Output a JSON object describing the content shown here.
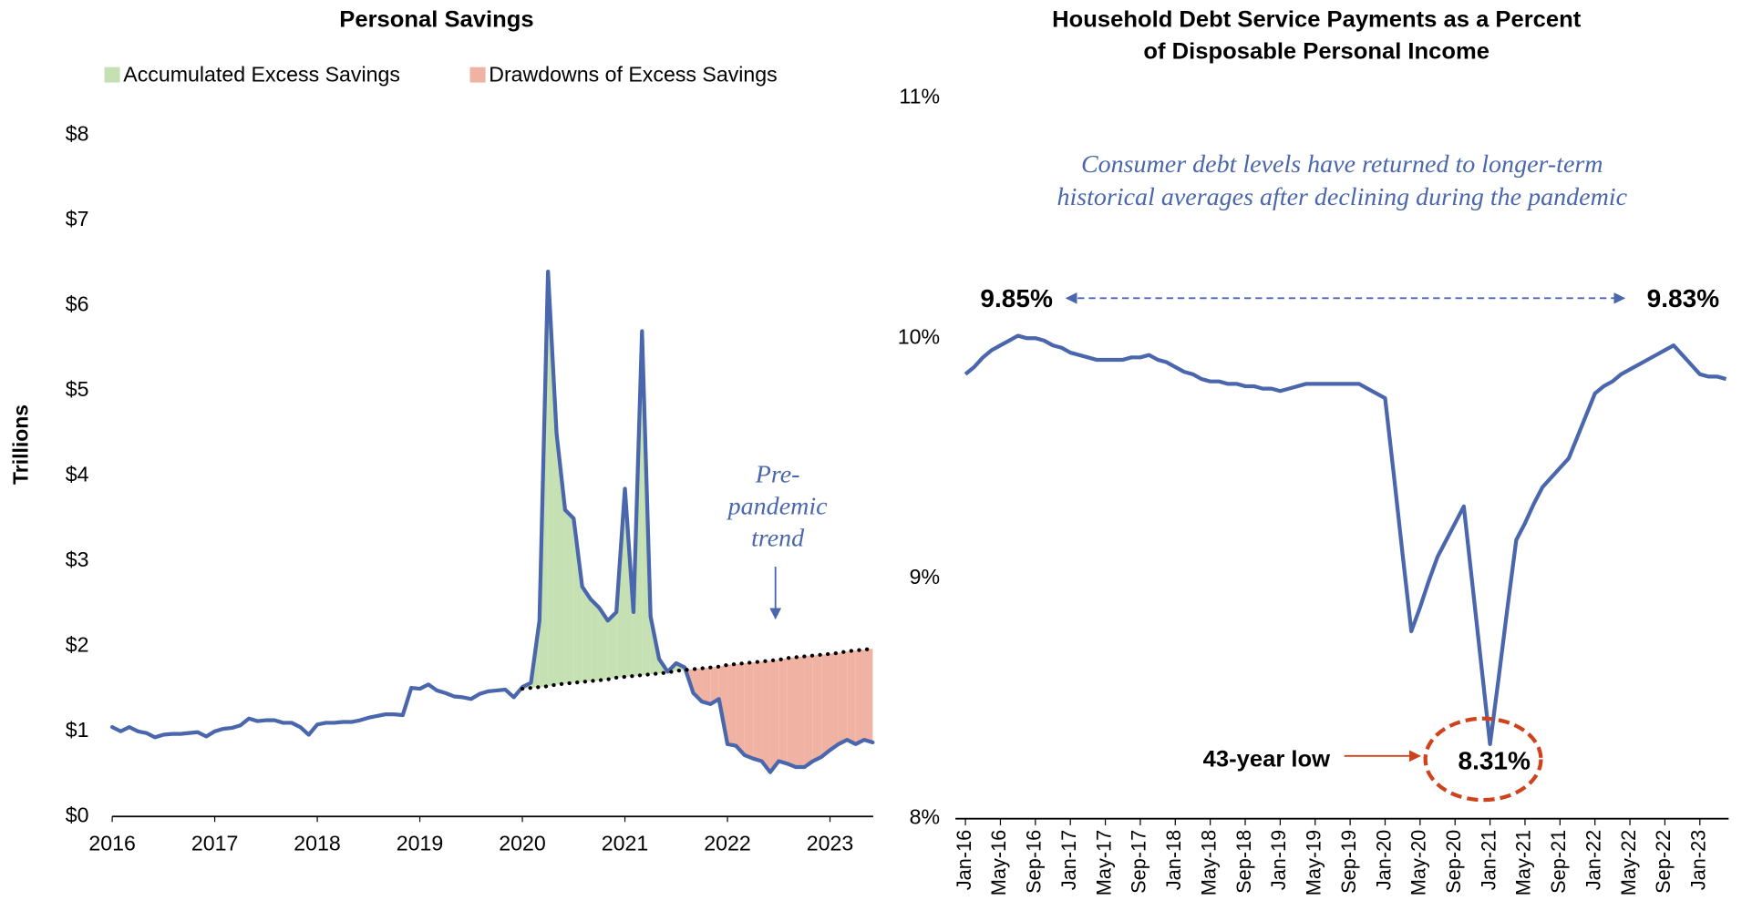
{
  "chart_data": [
    {
      "type": "area-line",
      "title": "Personal Savings",
      "y_label": "Trillions",
      "categories": [
        "2016",
        null,
        null,
        null,
        null,
        null,
        null,
        null,
        null,
        null,
        null,
        null,
        "2017",
        null,
        null,
        null,
        null,
        null,
        null,
        null,
        null,
        null,
        null,
        null,
        "2018",
        null,
        null,
        null,
        null,
        null,
        null,
        null,
        null,
        null,
        null,
        null,
        "2019",
        null,
        null,
        null,
        null,
        null,
        null,
        null,
        null,
        null,
        null,
        null,
        "2020",
        null,
        null,
        null,
        null,
        null,
        null,
        null,
        null,
        null,
        null,
        null,
        "2021",
        null,
        null,
        null,
        null,
        null,
        null,
        null,
        null,
        null,
        null,
        null,
        "2022",
        null,
        null,
        null,
        null,
        null,
        null,
        null,
        null,
        null,
        null,
        null,
        "2023",
        null,
        null,
        null,
        null,
        null
      ],
      "series": [
        {
          "color": "#4a66ac",
          "values": [
            1.05,
            1.0,
            1.05,
            1.0,
            0.98,
            0.93,
            0.96,
            0.97,
            0.97,
            0.98,
            0.99,
            0.94,
            1.0,
            1.03,
            1.04,
            1.07,
            1.15,
            1.12,
            1.13,
            1.13,
            1.1,
            1.1,
            1.05,
            0.96,
            1.08,
            1.1,
            1.1,
            1.11,
            1.11,
            1.13,
            1.16,
            1.18,
            1.2,
            1.2,
            1.19,
            1.51,
            1.5,
            1.55,
            1.48,
            1.45,
            1.41,
            1.4,
            1.38,
            1.44,
            1.47,
            1.48,
            1.49,
            1.4,
            1.52,
            1.57,
            2.3,
            6.4,
            4.5,
            3.6,
            3.5,
            2.7,
            2.55,
            2.45,
            2.3,
            2.4,
            3.85,
            2.4,
            5.7,
            2.35,
            1.85,
            1.7,
            1.8,
            1.75,
            1.45,
            1.35,
            1.32,
            1.38,
            0.85,
            0.83,
            0.72,
            0.68,
            0.65,
            0.52,
            0.65,
            0.62,
            0.58,
            0.58,
            0.65,
            0.7,
            0.78,
            0.85,
            0.9,
            0.85,
            0.9,
            0.87
          ]
        },
        {
          "color": "#000000",
          "dotted": true,
          "values": [
            null,
            null,
            null,
            null,
            null,
            null,
            null,
            null,
            null,
            null,
            null,
            null,
            null,
            null,
            null,
            null,
            null,
            null,
            null,
            null,
            null,
            null,
            null,
            null,
            null,
            null,
            null,
            null,
            null,
            null,
            null,
            null,
            null,
            null,
            null,
            null,
            null,
            null,
            null,
            null,
            null,
            null,
            null,
            null,
            null,
            null,
            null,
            null,
            1.5,
            1.51,
            1.52,
            1.53,
            1.55,
            1.56,
            1.57,
            1.58,
            1.59,
            1.6,
            1.61,
            1.63,
            1.64,
            1.65,
            1.66,
            1.67,
            1.68,
            1.69,
            1.71,
            1.72,
            1.73,
            1.74,
            1.75,
            1.76,
            1.78,
            1.79,
            1.8,
            1.81,
            1.82,
            1.83,
            1.84,
            1.86,
            1.87,
            1.88,
            1.89,
            1.9,
            1.91,
            1.92,
            1.94,
            1.95,
            1.96,
            1.97
          ]
        }
      ],
      "fills": [
        {
          "name": "Accumulated Excess Savings",
          "color": "#c5e0b3"
        },
        {
          "name": "Drawdowns of Excess Savings",
          "color": "#f0b3a3"
        }
      ],
      "annotation": [
        "Pre-",
        "pandemic",
        "trend"
      ],
      "ylim": [
        0,
        8
      ],
      "yticks": [
        {
          "value": 0,
          "label": "$0"
        },
        {
          "value": 1,
          "label": "$1"
        },
        {
          "value": 2,
          "label": "$2"
        },
        {
          "value": 3,
          "label": "$3"
        },
        {
          "value": 4,
          "label": "$4"
        },
        {
          "value": 5,
          "label": "$5"
        },
        {
          "value": 6,
          "label": "$6"
        },
        {
          "value": 7,
          "label": "$7"
        },
        {
          "value": 8,
          "label": "$8"
        }
      ]
    },
    {
      "type": "line",
      "title": [
        "Household Debt Service Payments as a Percent",
        "of Disposable Personal Income"
      ],
      "subtitle": [
        "Consumer debt levels have returned to longer-term",
        "historical averages after declining during the pandemic"
      ],
      "categories": [
        "Jan-16",
        null,
        null,
        null,
        "May-16",
        null,
        null,
        null,
        "Sep-16",
        null,
        null,
        null,
        "Jan-17",
        null,
        null,
        null,
        "May-17",
        null,
        null,
        null,
        "Sep-17",
        null,
        null,
        null,
        "Jan-18",
        null,
        null,
        null,
        "May-18",
        null,
        null,
        null,
        "Sep-18",
        null,
        null,
        null,
        "Jan-19",
        null,
        null,
        null,
        "May-19",
        null,
        null,
        null,
        "Sep-19",
        null,
        null,
        null,
        "Jan-20",
        null,
        null,
        null,
        "May-20",
        null,
        null,
        null,
        "Sep-20",
        null,
        null,
        null,
        "Jan-21",
        null,
        null,
        null,
        "May-21",
        null,
        null,
        null,
        "Sep-21",
        null,
        null,
        null,
        "Jan-22",
        null,
        null,
        null,
        "May-22",
        null,
        null,
        null,
        "Sep-22",
        null,
        null,
        null,
        "Jan-23",
        null,
        null,
        null
      ],
      "series": [
        {
          "color": "#4a66ac",
          "values": [
            9.85,
            9.88,
            9.92,
            9.95,
            9.97,
            9.99,
            10.01,
            10.0,
            10.0,
            9.99,
            9.97,
            9.96,
            9.94,
            9.93,
            9.92,
            9.91,
            9.91,
            9.91,
            9.91,
            9.92,
            9.92,
            9.93,
            9.91,
            9.9,
            9.88,
            9.86,
            9.85,
            9.83,
            9.82,
            9.82,
            9.81,
            9.81,
            9.8,
            9.8,
            9.79,
            9.79,
            9.78,
            9.79,
            9.8,
            9.81,
            9.81,
            9.81,
            9.81,
            9.81,
            9.81,
            9.81,
            9.79,
            9.77,
            9.75,
            9.43,
            9.1,
            8.78,
            8.88,
            8.99,
            9.09,
            9.16,
            9.23,
            9.3,
            8.97,
            8.64,
            8.31,
            8.59,
            8.88,
            9.16,
            9.23,
            9.31,
            9.38,
            9.42,
            9.46,
            9.5,
            9.59,
            9.68,
            9.77,
            9.8,
            9.82,
            9.85,
            9.87,
            9.89,
            9.91,
            9.93,
            9.95,
            9.97,
            9.93,
            9.89,
            9.85,
            9.84,
            9.84,
            9.83
          ],
          "value_labels": {
            "0": "9.85%",
            "60": "8.31%",
            "87": "9.83%"
          }
        }
      ],
      "annotation": "43-year low",
      "ylim": [
        8,
        11
      ],
      "yticks": [
        {
          "value": 8,
          "label": "8%"
        },
        {
          "value": 9,
          "label": "9%"
        },
        {
          "value": 10,
          "label": "10%"
        },
        {
          "value": 11,
          "label": "11%"
        }
      ]
    }
  ]
}
